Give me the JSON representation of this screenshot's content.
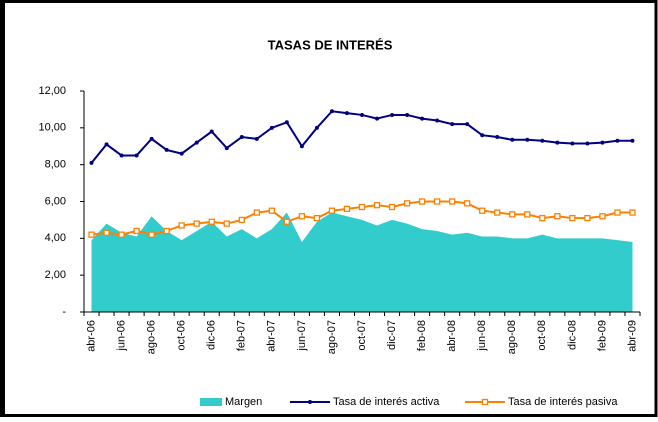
{
  "chart_data": {
    "type": "line",
    "title": "TASAS DE INTERÉS",
    "categories": [
      "abr-06",
      null,
      "jun-06",
      null,
      "ago-06",
      null,
      "oct-06",
      null,
      "dic-06",
      null,
      "feb-07",
      null,
      "abr-07",
      null,
      "jun-07",
      null,
      "ago-07",
      null,
      "oct-07",
      null,
      "dic-07",
      null,
      "feb-08",
      null,
      "abr-08",
      null,
      "jun-08",
      null,
      "ago-08",
      null,
      "oct-08",
      null,
      "dic-08",
      null,
      "feb-09",
      null,
      "abr-09"
    ],
    "series": [
      {
        "name": "Margen",
        "color": "#33cccc",
        "mark": "area",
        "values": [
          3.9,
          4.8,
          4.3,
          4.1,
          5.2,
          4.4,
          3.9,
          4.4,
          4.9,
          4.1,
          4.5,
          4.0,
          4.5,
          5.4,
          3.8,
          4.9,
          5.4,
          5.2,
          5.0,
          4.7,
          5.0,
          4.8,
          4.5,
          4.4,
          4.2,
          4.3,
          4.1,
          4.1,
          4.0,
          4.0,
          4.2,
          4.0,
          4.0,
          4.0,
          4.0,
          3.9,
          3.8
        ]
      },
      {
        "name": "Tasa de interés activa",
        "color": "#000080",
        "mark": "dot",
        "values": [
          8.1,
          9.1,
          8.5,
          8.5,
          9.4,
          8.8,
          8.6,
          9.2,
          9.8,
          8.9,
          9.5,
          9.4,
          10.0,
          10.3,
          9.0,
          10.0,
          10.9,
          10.8,
          10.7,
          10.5,
          10.7,
          10.7,
          10.5,
          10.4,
          10.2,
          10.2,
          9.6,
          9.5,
          9.35,
          9.35,
          9.3,
          9.2,
          9.15,
          9.15,
          9.2,
          9.3,
          9.3
        ]
      },
      {
        "name": "Tasa de interés pasiva",
        "color": "#ff8000",
        "mark": "square",
        "values": [
          4.2,
          4.3,
          4.2,
          4.4,
          4.2,
          4.4,
          4.7,
          4.8,
          4.9,
          4.8,
          5.0,
          5.4,
          5.5,
          4.9,
          5.2,
          5.1,
          5.5,
          5.6,
          5.7,
          5.8,
          5.7,
          5.9,
          6.0,
          6.0,
          6.0,
          5.9,
          5.5,
          5.4,
          5.3,
          5.3,
          5.1,
          5.2,
          5.1,
          5.1,
          5.2,
          5.4,
          5.4
        ]
      }
    ],
    "ylim": [
      0,
      12
    ],
    "yticks": [
      {
        "value": 0,
        "label": "-"
      },
      {
        "value": 2,
        "label": "2,00"
      },
      {
        "value": 4,
        "label": "4,00"
      },
      {
        "value": 6,
        "label": "6,00"
      },
      {
        "value": 8,
        "label": "8,00"
      },
      {
        "value": 10,
        "label": "10,00"
      },
      {
        "value": 12,
        "label": "12,00"
      }
    ],
    "grid": false,
    "legend": "bottom"
  }
}
